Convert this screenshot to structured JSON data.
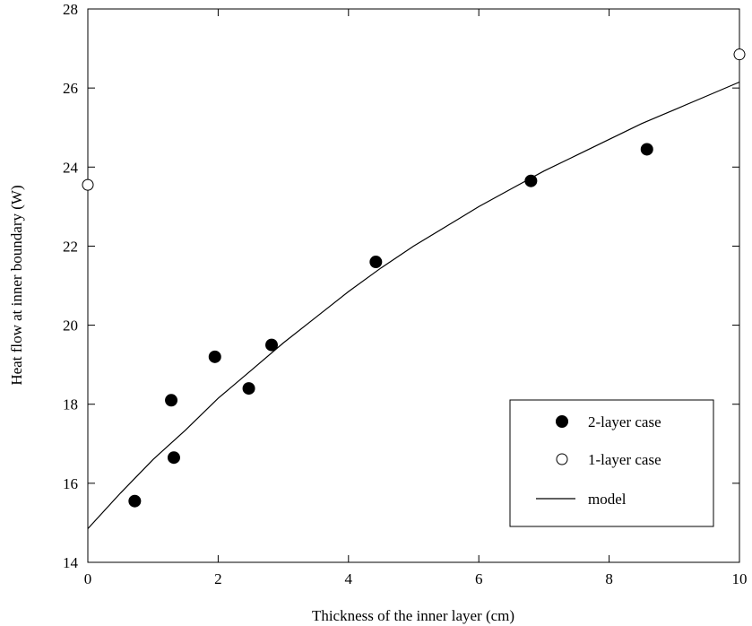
{
  "chart_data": {
    "type": "scatter",
    "title": "",
    "xlabel": "Thickness of the inner layer (cm)",
    "ylabel": "Heat flow at inner boundary (W)",
    "xlim": [
      0,
      10
    ],
    "ylim": [
      14,
      28
    ],
    "xticks": [
      0,
      2,
      4,
      6,
      8,
      10
    ],
    "yticks": [
      14,
      16,
      18,
      20,
      22,
      24,
      26,
      28
    ],
    "xtick_labels": [
      "0",
      "2",
      "4",
      "6",
      "8",
      "10"
    ],
    "ytick_labels": [
      "14",
      "16",
      "18",
      "20",
      "22",
      "24",
      "26",
      "28"
    ],
    "grid": false,
    "legend_position": "bottom-right",
    "series": [
      {
        "name": "2-layer case",
        "marker": "filled-circle",
        "color": "#000000",
        "points": [
          {
            "x": 0.72,
            "y": 15.55
          },
          {
            "x": 1.28,
            "y": 18.1
          },
          {
            "x": 1.32,
            "y": 16.65
          },
          {
            "x": 1.95,
            "y": 19.2
          },
          {
            "x": 2.47,
            "y": 18.4
          },
          {
            "x": 2.82,
            "y": 19.5
          },
          {
            "x": 4.42,
            "y": 21.6
          },
          {
            "x": 6.8,
            "y": 23.65
          },
          {
            "x": 8.58,
            "y": 24.45
          }
        ]
      },
      {
        "name": "1-layer case",
        "marker": "open-circle",
        "color": "#000000",
        "points": [
          {
            "x": 0.0,
            "y": 23.55
          },
          {
            "x": 10.0,
            "y": 26.85
          }
        ]
      },
      {
        "name": "model",
        "marker": "line",
        "color": "#000000",
        "points": [
          {
            "x": 0.0,
            "y": 14.85
          },
          {
            "x": 0.5,
            "y": 15.75
          },
          {
            "x": 1.0,
            "y": 16.6
          },
          {
            "x": 1.5,
            "y": 17.35
          },
          {
            "x": 2.0,
            "y": 18.15
          },
          {
            "x": 2.5,
            "y": 18.85
          },
          {
            "x": 3.0,
            "y": 19.55
          },
          {
            "x": 3.5,
            "y": 20.2
          },
          {
            "x": 4.0,
            "y": 20.85
          },
          {
            "x": 4.5,
            "y": 21.45
          },
          {
            "x": 5.0,
            "y": 22.0
          },
          {
            "x": 5.5,
            "y": 22.5
          },
          {
            "x": 6.0,
            "y": 23.0
          },
          {
            "x": 6.5,
            "y": 23.45
          },
          {
            "x": 7.0,
            "y": 23.9
          },
          {
            "x": 7.5,
            "y": 24.3
          },
          {
            "x": 8.0,
            "y": 24.7
          },
          {
            "x": 8.5,
            "y": 25.1
          },
          {
            "x": 9.0,
            "y": 25.45
          },
          {
            "x": 9.5,
            "y": 25.8
          },
          {
            "x": 10.0,
            "y": 26.15
          }
        ]
      }
    ]
  }
}
